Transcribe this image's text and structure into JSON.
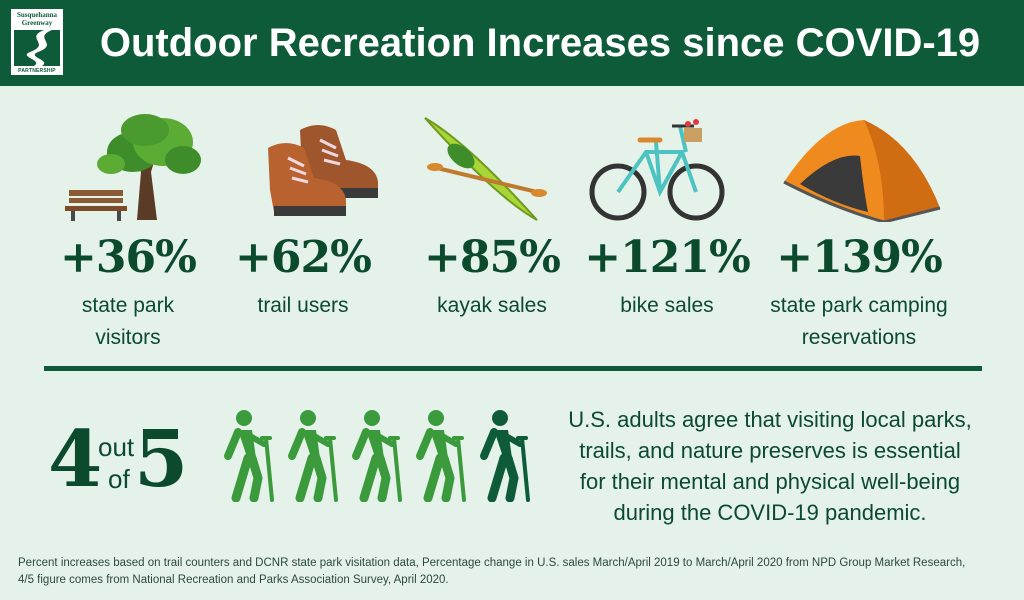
{
  "header": {
    "title": "Outdoor Recreation Increases since COVID-19",
    "logo": {
      "line1": "Susquehanna",
      "line2": "Greenway",
      "line3": "PARTNERSHIP"
    }
  },
  "stats": [
    {
      "value": "+36%",
      "label_line1": "state park",
      "label_line2": "visitors",
      "icon": "tree-bench-icon"
    },
    {
      "value": "+62%",
      "label_line1": "trail users",
      "label_line2": "",
      "icon": "hiking-boots-icon"
    },
    {
      "value": "+85%",
      "label_line1": "kayak sales",
      "label_line2": "",
      "icon": "kayak-icon"
    },
    {
      "value": "+121%",
      "label_line1": "bike sales",
      "label_line2": "",
      "icon": "bicycle-icon"
    },
    {
      "value": "+139%",
      "label_line1": "state park camping",
      "label_line2": "reservations",
      "icon": "tent-icon"
    }
  ],
  "survey": {
    "numerator": "4",
    "out_text": "out",
    "of_text": "of",
    "denominator": "5",
    "hikers_filled": 4,
    "hikers_total": 5,
    "hiker_color": "#3a9a3c",
    "hiker_dark_color": "#0d5b38",
    "statement_lines": [
      "U.S. adults agree that visiting local parks,",
      "trails, and nature preserves is essential",
      "for their mental and physical well-being",
      "during the COVID-19 pandemic."
    ]
  },
  "footnote": {
    "line1": "Percent increases based on trail counters and DCNR state park visitation data, Percentage change in U.S. sales March/April 2019 to March/April 2020 from NPD Group Market Research,",
    "line2": "4/5 figure comes from National Recreation and Parks Association Survey, April 2020."
  },
  "colors": {
    "brand_green": "#0d5b38",
    "background": "#e4f2ea",
    "accent_green": "#3a9a3c"
  }
}
